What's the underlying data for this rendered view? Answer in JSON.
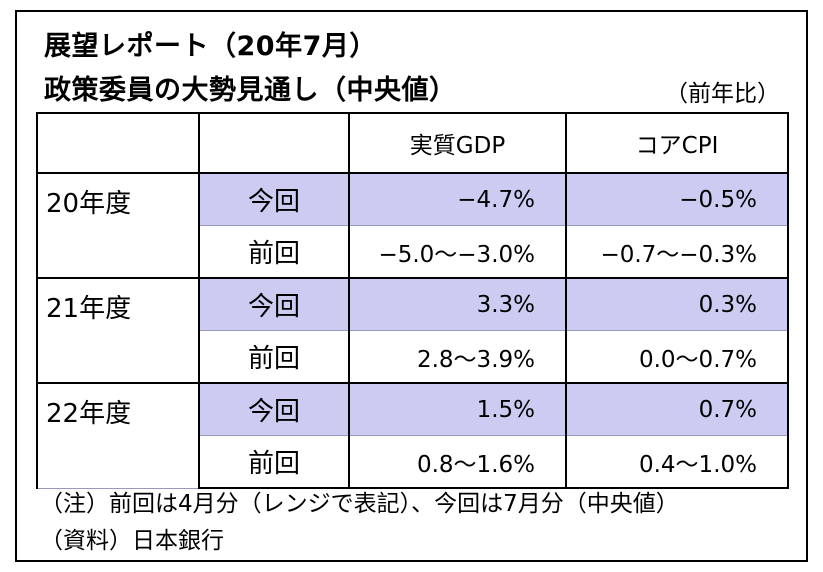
{
  "title": {
    "line1": "展望レポート（20年7月）",
    "line2": "政策委員の大勢見通し（中央値）",
    "unit": "（前年比）"
  },
  "table": {
    "headers": [
      "",
      "",
      "実質GDP",
      "コアCPI"
    ],
    "rows": [
      {
        "year": "20年度",
        "current": {
          "label": "今回",
          "gdp": "−4.7%",
          "cpi": "−0.5%"
        },
        "previous": {
          "label": "前回",
          "gdp": "−5.0〜−3.0%",
          "cpi": "−0.7〜−0.3%"
        }
      },
      {
        "year": "21年度",
        "current": {
          "label": "今回",
          "gdp": "3.3%",
          "cpi": "0.3%"
        },
        "previous": {
          "label": "前回",
          "gdp": "2.8〜3.9%",
          "cpi": "0.0〜0.7%"
        }
      },
      {
        "year": "22年度",
        "current": {
          "label": "今回",
          "gdp": "1.5%",
          "cpi": "0.7%"
        },
        "previous": {
          "label": "前回",
          "gdp": "0.8〜1.6%",
          "cpi": "0.4〜1.0%"
        }
      }
    ]
  },
  "notes": {
    "note": "（注）前回は4月分（レンジで表記）、今回は7月分（中央値）",
    "source": "（資料）日本銀行"
  },
  "colors": {
    "highlight": "#ccccf2",
    "border": "#000000"
  }
}
